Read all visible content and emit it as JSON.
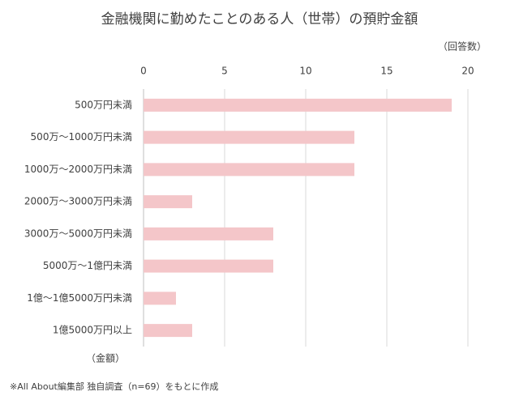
{
  "chart_data": {
    "type": "bar",
    "orientation": "horizontal",
    "title": "金融機関に勤めたことのある人（世帯）の預貯金額",
    "x_label": "（回答数）",
    "y_label": "（金額）",
    "note": "※All About編集部 独自調査（n=69）をもとに作成",
    "categories": [
      "500万円未満",
      "500万～1000万円未満",
      "1000万～2000万円未満",
      "2000万～3000万円未満",
      "3000万～5000万円未満",
      "5000万～1億円未満",
      "1億～1億5000万円未満",
      "1億5000万円以上"
    ],
    "values": [
      19,
      13,
      13,
      3,
      8,
      8,
      2,
      3
    ],
    "color": "#f4c6c9",
    "xlim": [
      0,
      20
    ],
    "xticks": [
      0,
      5,
      10,
      15,
      20
    ],
    "grid": true
  }
}
